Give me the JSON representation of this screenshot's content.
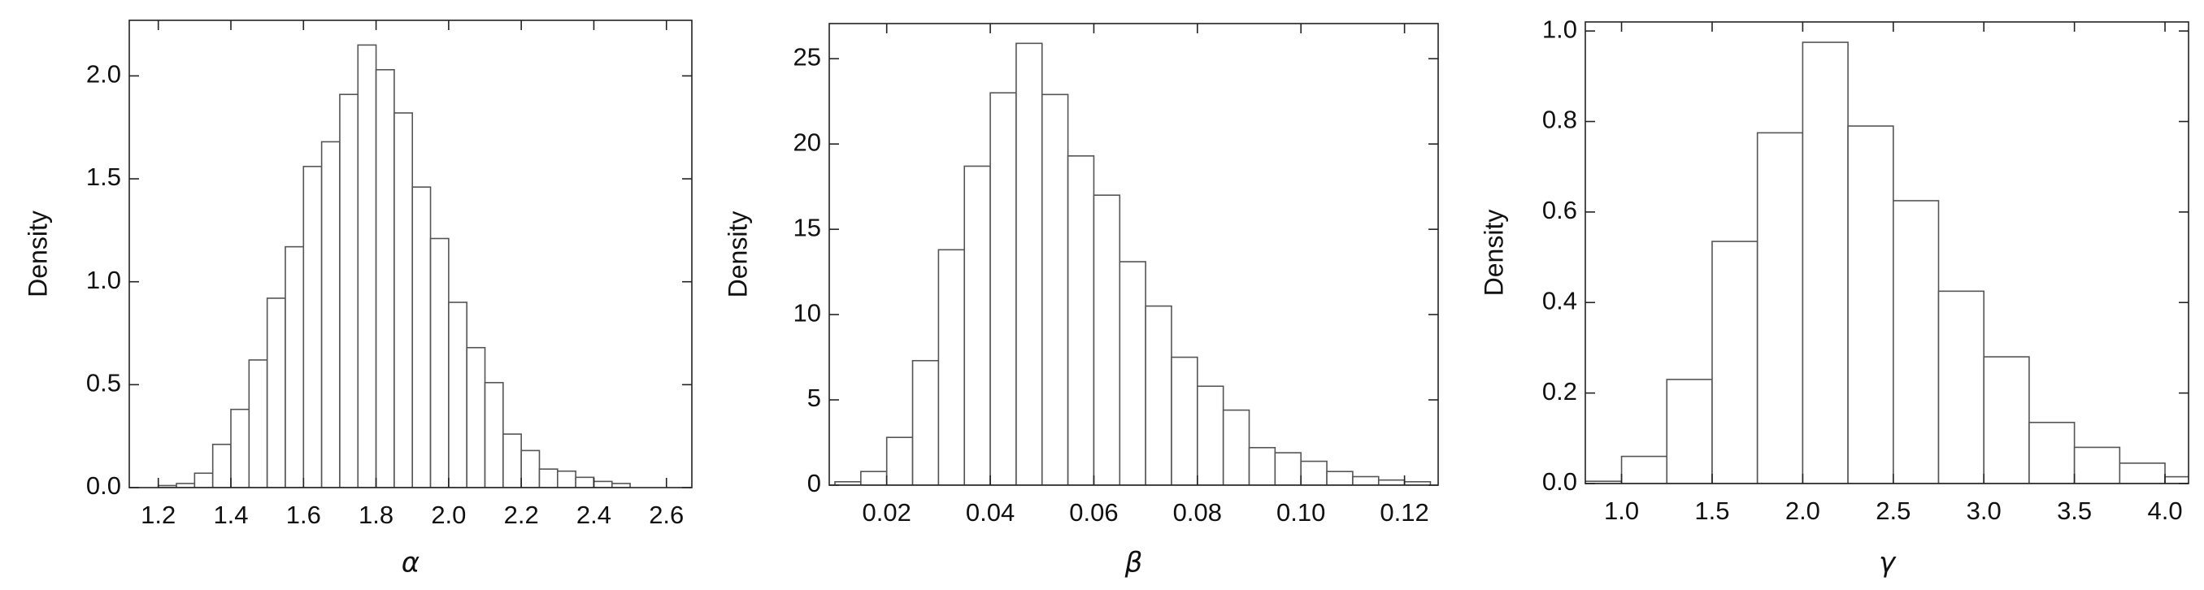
{
  "chart_data": [
    {
      "type": "histogram",
      "xlabel": "α",
      "ylabel": "Density",
      "bins": [
        1.2,
        1.25,
        1.3,
        1.35,
        1.4,
        1.45,
        1.5,
        1.55,
        1.6,
        1.65,
        1.7,
        1.75,
        1.8,
        1.85,
        1.9,
        1.95,
        2.0,
        2.05,
        2.1,
        2.15,
        2.2,
        2.25,
        2.3,
        2.35,
        2.4,
        2.45,
        2.5
      ],
      "values": [
        0.01,
        0.02,
        0.07,
        0.21,
        0.38,
        0.62,
        0.92,
        1.17,
        1.56,
        1.68,
        1.91,
        2.15,
        2.03,
        1.82,
        1.46,
        1.21,
        0.9,
        0.68,
        0.51,
        0.26,
        0.18,
        0.09,
        0.08,
        0.05,
        0.03,
        0.02
      ],
      "color": "#ffffff",
      "edgecolor": "#555555",
      "xlim": [
        1.12,
        2.67
      ],
      "ylim": [
        0,
        2.27
      ],
      "xticks": [
        1.2,
        1.4,
        1.6,
        1.8,
        {
          "value": 2.0,
          "label": "2.0"
        },
        2.2,
        2.4,
        2.6
      ],
      "yticks": [
        {
          "value": 0,
          "label": "0.0"
        },
        0.5,
        {
          "value": 1,
          "label": "1.0"
        },
        1.5,
        {
          "value": 2,
          "label": "2.0"
        }
      ]
    },
    {
      "type": "histogram",
      "xlabel": "β",
      "ylabel": "Density",
      "bins": [
        0.01,
        0.015,
        0.02,
        0.025,
        0.03,
        0.035,
        0.04,
        0.045,
        0.05,
        0.055,
        0.06,
        0.065,
        0.07,
        0.075,
        0.08,
        0.085,
        0.09,
        0.095,
        0.1,
        0.105,
        0.11,
        0.115,
        0.12,
        0.125
      ],
      "values": [
        0.2,
        0.8,
        2.8,
        7.3,
        13.8,
        18.7,
        23.0,
        25.9,
        22.9,
        19.3,
        17.0,
        13.1,
        10.5,
        7.5,
        5.8,
        4.4,
        2.2,
        1.9,
        1.4,
        0.8,
        0.5,
        0.3,
        0.2
      ],
      "color": "#ffffff",
      "edgecolor": "#555555",
      "xlim": [
        0.0089,
        0.1265
      ],
      "ylim": [
        0,
        27.06
      ],
      "xticks": [
        0.02,
        0.04,
        0.06,
        0.08,
        {
          "value": 0.1,
          "label": "0.10"
        },
        0.12
      ],
      "yticks": [
        0,
        5,
        10,
        15,
        20,
        25
      ]
    },
    {
      "type": "histogram",
      "xlabel": "γ",
      "ylabel": "Density",
      "bins": [
        0.75,
        1.0,
        1.25,
        1.5,
        1.75,
        2.0,
        2.25,
        2.5,
        2.75,
        3.0,
        3.25,
        3.5,
        3.75,
        4.0,
        4.25
      ],
      "values": [
        0.005,
        0.06,
        0.23,
        0.535,
        0.775,
        0.975,
        0.79,
        0.625,
        0.425,
        0.28,
        0.135,
        0.08,
        0.045,
        0.015
      ],
      "color": "#ffffff",
      "edgecolor": "#555555",
      "xlim": [
        0.8,
        4.13
      ],
      "ylim": [
        0,
        1.02
      ],
      "xticks": [
        {
          "value": 1,
          "label": "1.0"
        },
        1.5,
        {
          "value": 2,
          "label": "2.0"
        },
        2.5,
        {
          "value": 3,
          "label": "3.0"
        },
        3.5,
        {
          "value": 4,
          "label": "4.0"
        }
      ],
      "yticks": [
        {
          "value": 0,
          "label": "0.0"
        },
        0.2,
        0.4,
        0.6,
        0.8,
        {
          "value": 1,
          "label": "1.0"
        }
      ]
    }
  ]
}
